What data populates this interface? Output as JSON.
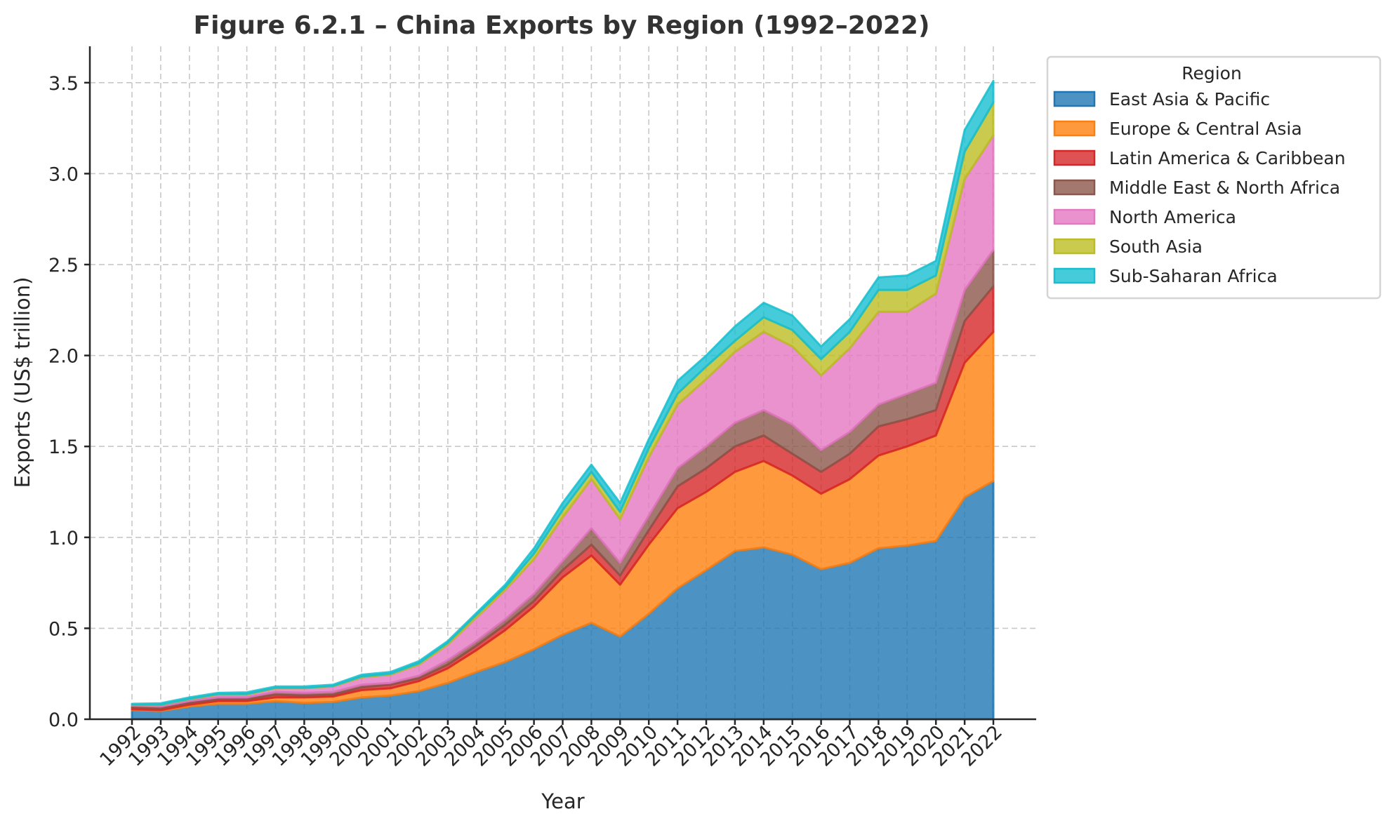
{
  "chart_data": {
    "type": "area",
    "stacked": true,
    "title": "Figure 6.2.1 – China Exports by Region (1992–2022)",
    "xlabel": "Year",
    "ylabel": "Exports (US$ trillion)",
    "ylim": [
      0,
      3.7
    ],
    "yticks": [
      0.0,
      0.5,
      1.0,
      1.5,
      2.0,
      2.5,
      3.0,
      3.5
    ],
    "ytick_labels": [
      "0.0",
      "0.5",
      "1.0",
      "1.5",
      "2.0",
      "2.5",
      "3.0",
      "3.5"
    ],
    "grid": true,
    "legend": {
      "title": "Region",
      "placement": "outside-top-right"
    },
    "x": [
      1992,
      1993,
      1994,
      1995,
      1996,
      1997,
      1998,
      1999,
      2000,
      2001,
      2002,
      2003,
      2004,
      2005,
      2006,
      2007,
      2008,
      2009,
      2010,
      2011,
      2012,
      2013,
      2014,
      2015,
      2016,
      2017,
      2018,
      2019,
      2020,
      2021,
      2022
    ],
    "xtick_labels": [
      "1992",
      "1993",
      "1994",
      "1995",
      "1996",
      "1997",
      "1998",
      "1999",
      "2000",
      "2001",
      "2002",
      "2003",
      "2004",
      "2005",
      "2006",
      "2007",
      "2008",
      "2009",
      "2010",
      "2011",
      "2012",
      "2013",
      "2014",
      "2015",
      "2016",
      "2017",
      "2018",
      "2019",
      "2020",
      "2021",
      "2022"
    ],
    "series": [
      {
        "name": "East Asia & Pacific",
        "color": "#1f77b4",
        "values": [
          0.05,
          0.045,
          0.07,
          0.085,
          0.085,
          0.1,
          0.09,
          0.095,
          0.12,
          0.13,
          0.155,
          0.2,
          0.26,
          0.315,
          0.385,
          0.465,
          0.53,
          0.455,
          0.58,
          0.72,
          0.82,
          0.925,
          0.945,
          0.905,
          0.825,
          0.86,
          0.94,
          0.955,
          0.98,
          1.22,
          1.31
        ]
      },
      {
        "name": "Europe & Central Asia",
        "color": "#ff7f0e",
        "values": [
          0.005,
          0.005,
          0.01,
          0.015,
          0.015,
          0.02,
          0.03,
          0.03,
          0.04,
          0.04,
          0.055,
          0.08,
          0.12,
          0.175,
          0.235,
          0.315,
          0.37,
          0.285,
          0.38,
          0.44,
          0.43,
          0.435,
          0.475,
          0.435,
          0.415,
          0.46,
          0.51,
          0.545,
          0.58,
          0.74,
          0.82
        ]
      },
      {
        "name": "Latin America & Caribbean",
        "color": "#d62728",
        "values": [
          0.01,
          0.01,
          0.01,
          0.01,
          0.01,
          0.015,
          0.01,
          0.01,
          0.015,
          0.02,
          0.015,
          0.02,
          0.025,
          0.03,
          0.03,
          0.04,
          0.06,
          0.05,
          0.08,
          0.12,
          0.13,
          0.14,
          0.14,
          0.12,
          0.12,
          0.14,
          0.16,
          0.15,
          0.14,
          0.23,
          0.25
        ]
      },
      {
        "name": "Middle East & North Africa",
        "color": "#8c564b",
        "values": [
          0.01,
          0.01,
          0.01,
          0.01,
          0.01,
          0.015,
          0.015,
          0.015,
          0.015,
          0.01,
          0.015,
          0.025,
          0.025,
          0.03,
          0.04,
          0.05,
          0.09,
          0.07,
          0.08,
          0.1,
          0.12,
          0.13,
          0.14,
          0.16,
          0.12,
          0.12,
          0.12,
          0.14,
          0.15,
          0.17,
          0.2
        ]
      },
      {
        "name": "North America",
        "color": "#e377c2",
        "values": [
          0.003,
          0.008,
          0.01,
          0.015,
          0.015,
          0.02,
          0.025,
          0.03,
          0.04,
          0.045,
          0.06,
          0.085,
          0.13,
          0.16,
          0.19,
          0.24,
          0.27,
          0.24,
          0.32,
          0.35,
          0.37,
          0.39,
          0.43,
          0.43,
          0.41,
          0.46,
          0.51,
          0.45,
          0.49,
          0.61,
          0.63
        ]
      },
      {
        "name": "South Asia",
        "color": "#bcbd22",
        "values": [
          0.002,
          0.002,
          0.002,
          0.003,
          0.003,
          0.003,
          0.003,
          0.003,
          0.005,
          0.005,
          0.008,
          0.01,
          0.015,
          0.015,
          0.03,
          0.04,
          0.04,
          0.04,
          0.05,
          0.06,
          0.07,
          0.06,
          0.08,
          0.09,
          0.09,
          0.09,
          0.12,
          0.12,
          0.1,
          0.15,
          0.18
        ]
      },
      {
        "name": "Sub-Saharan Africa",
        "color": "#17becf",
        "values": [
          0.005,
          0.008,
          0.008,
          0.007,
          0.01,
          0.007,
          0.007,
          0.007,
          0.01,
          0.01,
          0.012,
          0.01,
          0.01,
          0.015,
          0.03,
          0.04,
          0.04,
          0.05,
          0.05,
          0.07,
          0.06,
          0.08,
          0.08,
          0.08,
          0.07,
          0.07,
          0.07,
          0.08,
          0.08,
          0.12,
          0.12
        ]
      }
    ]
  }
}
